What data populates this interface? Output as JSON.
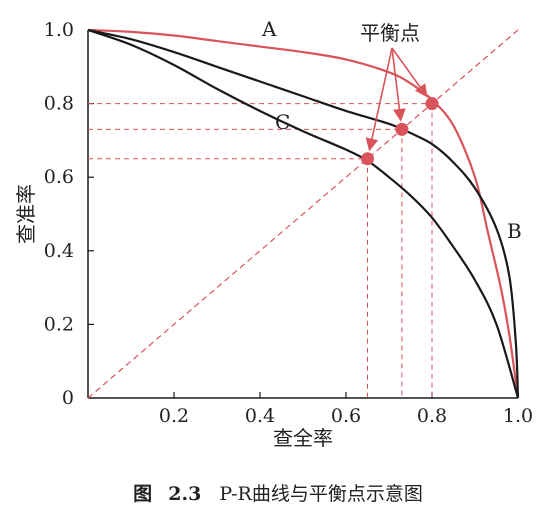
{
  "chart_data": {
    "type": "line",
    "xlabel": "查全率",
    "ylabel": "查准率",
    "xlim": [
      0,
      1
    ],
    "ylim": [
      0,
      1
    ],
    "x_ticks": [
      "0.2",
      "0.4",
      "0.6",
      "0.8",
      "1.0"
    ],
    "y_ticks": [
      "0",
      "0.2",
      "0.4",
      "0.6",
      "0.8",
      "1.0"
    ],
    "series": [
      {
        "name": "A",
        "color": "#d9545a",
        "points": [
          [
            0,
            1.0
          ],
          [
            0.1,
            0.995
          ],
          [
            0.2,
            0.985
          ],
          [
            0.3,
            0.97
          ],
          [
            0.4,
            0.955
          ],
          [
            0.5,
            0.94
          ],
          [
            0.6,
            0.92
          ],
          [
            0.7,
            0.885
          ],
          [
            0.75,
            0.855
          ],
          [
            0.8,
            0.81
          ],
          [
            0.85,
            0.74
          ],
          [
            0.9,
            0.6
          ],
          [
            0.93,
            0.45
          ],
          [
            0.96,
            0.3
          ],
          [
            0.98,
            0.17
          ],
          [
            1.0,
            0.0
          ]
        ]
      },
      {
        "name": "B",
        "color": "#1a1a1a",
        "points": [
          [
            0,
            1.0
          ],
          [
            0.1,
            0.975
          ],
          [
            0.2,
            0.94
          ],
          [
            0.3,
            0.9
          ],
          [
            0.4,
            0.86
          ],
          [
            0.5,
            0.82
          ],
          [
            0.6,
            0.78
          ],
          [
            0.7,
            0.745
          ],
          [
            0.75,
            0.72
          ],
          [
            0.8,
            0.69
          ],
          [
            0.85,
            0.64
          ],
          [
            0.9,
            0.57
          ],
          [
            0.95,
            0.46
          ],
          [
            0.98,
            0.33
          ],
          [
            0.995,
            0.15
          ],
          [
            1.0,
            0.0
          ]
        ]
      },
      {
        "name": "C",
        "color": "#1a1a1a",
        "points": [
          [
            0,
            1.0
          ],
          [
            0.1,
            0.96
          ],
          [
            0.2,
            0.905
          ],
          [
            0.3,
            0.84
          ],
          [
            0.4,
            0.78
          ],
          [
            0.5,
            0.725
          ],
          [
            0.6,
            0.675
          ],
          [
            0.65,
            0.645
          ],
          [
            0.7,
            0.6
          ],
          [
            0.75,
            0.55
          ],
          [
            0.8,
            0.49
          ],
          [
            0.85,
            0.41
          ],
          [
            0.9,
            0.32
          ],
          [
            0.95,
            0.2
          ],
          [
            1.0,
            0.0
          ]
        ]
      }
    ],
    "reference_line": {
      "from": [
        0,
        0
      ],
      "to": [
        1,
        1
      ],
      "style": "dashed",
      "color": "#d9545a"
    },
    "break_even_points": [
      {
        "x": 0.65,
        "y": 0.65
      },
      {
        "x": 0.73,
        "y": 0.73
      },
      {
        "x": 0.8,
        "y": 0.8
      }
    ],
    "annotation": "平衡点",
    "point_color": "#d9545a",
    "grid": false
  },
  "caption": {
    "figure_label": "图",
    "figure_number": "2.3",
    "text": "P-R曲线与平衡点示意图"
  }
}
